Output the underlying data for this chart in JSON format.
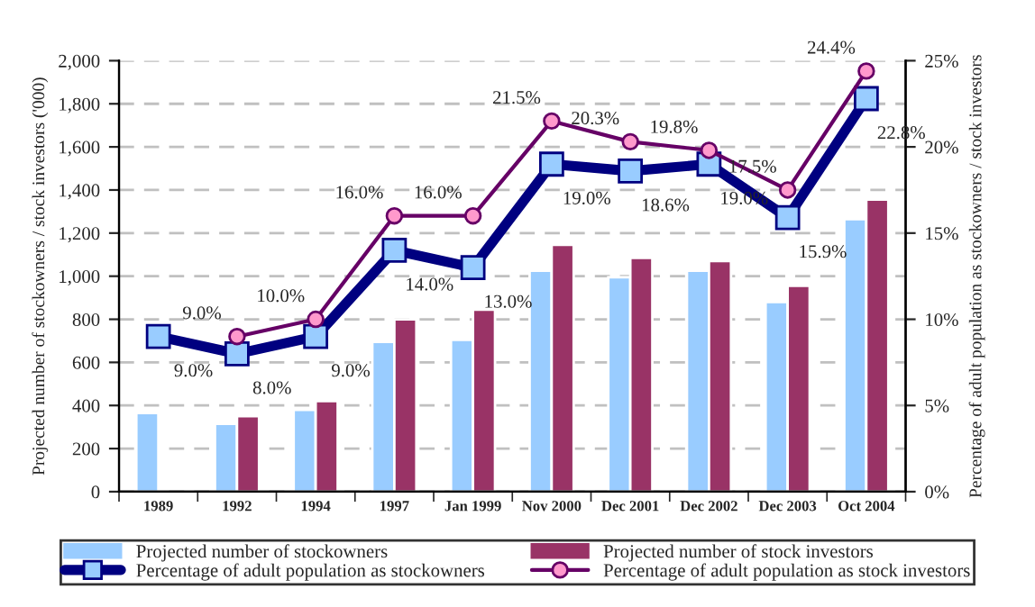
{
  "chart_data": {
    "type": "bar",
    "categories": [
      "1989",
      "1992",
      "1994",
      "1997",
      "Jan 1999",
      "Nov 2000",
      "Dec 2001",
      "Dec 2002",
      "Dec 2003",
      "Oct 2004"
    ],
    "ylabel": "Projected number of stockowners / stock investors ('000)",
    "y2label": "Percentage of adult population as stockowners / stock investors",
    "series": [
      {
        "name": "Projected number of stockowners",
        "color": "#99ccff",
        "values": [
          365,
          315,
          380,
          695,
          705,
          1025,
          995,
          1025,
          880,
          1265
        ]
      },
      {
        "name": "Projected number of stock investors",
        "color": "#993366",
        "values": [
          null,
          350,
          420,
          800,
          845,
          1145,
          1085,
          1070,
          955,
          1355
        ]
      },
      {
        "name": "Percentage of adult population as stockowners",
        "type": "line",
        "axis": "y2",
        "color": "#000080",
        "marker": "square",
        "values": [
          9.0,
          8.0,
          9.0,
          14.0,
          13.0,
          19.0,
          18.6,
          19.0,
          15.9,
          22.8
        ],
        "value_labels": [
          "9.0%",
          "8.0%",
          "9.0%",
          "14.0%",
          "13.0%",
          "19.0%",
          "18.6%",
          "19.0%",
          "15.9%",
          "22.8%"
        ]
      },
      {
        "name": "Percentage of adult population as stock investors",
        "type": "line",
        "axis": "y2",
        "color": "#660066",
        "marker": "circle",
        "values": [
          null,
          9.0,
          10.0,
          16.0,
          16.0,
          21.5,
          20.3,
          19.8,
          17.5,
          24.4
        ],
        "value_labels": [
          null,
          "9.0%",
          "10.0%",
          "16.0%",
          "16.0%",
          "21.5%",
          "20.3%",
          "19.8%",
          "17.5%",
          "24.4%"
        ]
      }
    ],
    "ylim": [
      0,
      2000
    ],
    "yticks": [
      {
        "value": 0,
        "label": "0"
      },
      {
        "value": 200,
        "label": "200"
      },
      {
        "value": 400,
        "label": "400"
      },
      {
        "value": 600,
        "label": "600"
      },
      {
        "value": 800,
        "label": "800"
      },
      {
        "value": 1000,
        "label": "1,000"
      },
      {
        "value": 1200,
        "label": "1,200"
      },
      {
        "value": 1400,
        "label": "1,400"
      },
      {
        "value": 1600,
        "label": "1,600"
      },
      {
        "value": 1800,
        "label": "1,800"
      },
      {
        "value": 2000,
        "label": "2,000"
      }
    ],
    "y2lim": [
      0,
      25
    ],
    "y2ticks": [
      {
        "value": 0,
        "label": "0%"
      },
      {
        "value": 5,
        "label": "5%"
      },
      {
        "value": 10,
        "label": "10%"
      },
      {
        "value": 15,
        "label": "15%"
      },
      {
        "value": 20,
        "label": "20%"
      },
      {
        "value": 25,
        "label": "25%"
      }
    ],
    "grid": "y",
    "legend": "bottom"
  }
}
